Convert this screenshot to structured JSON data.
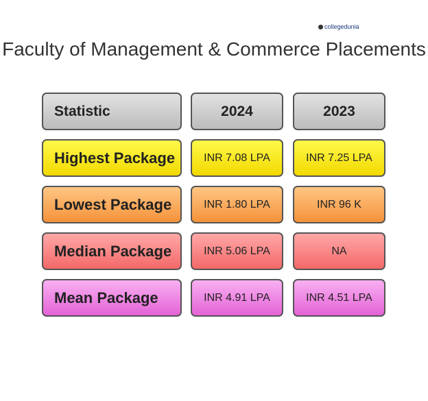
{
  "logo": "collegedunia",
  "title": "Faculty of Management & Commerce Placements",
  "table": {
    "header": [
      "Statistic",
      "2024",
      "2023"
    ],
    "rows": [
      [
        "Highest Package",
        "INR 7.08 LPA",
        "INR 7.25 LPA"
      ],
      [
        "Lowest Package",
        "INR 1.80 LPA",
        "INR 96 K"
      ],
      [
        "Median Package",
        "INR 5.06 LPA",
        "NA"
      ],
      [
        "Mean Package",
        "INR 4.91 LPA",
        "INR 4.51 LPA"
      ]
    ]
  }
}
